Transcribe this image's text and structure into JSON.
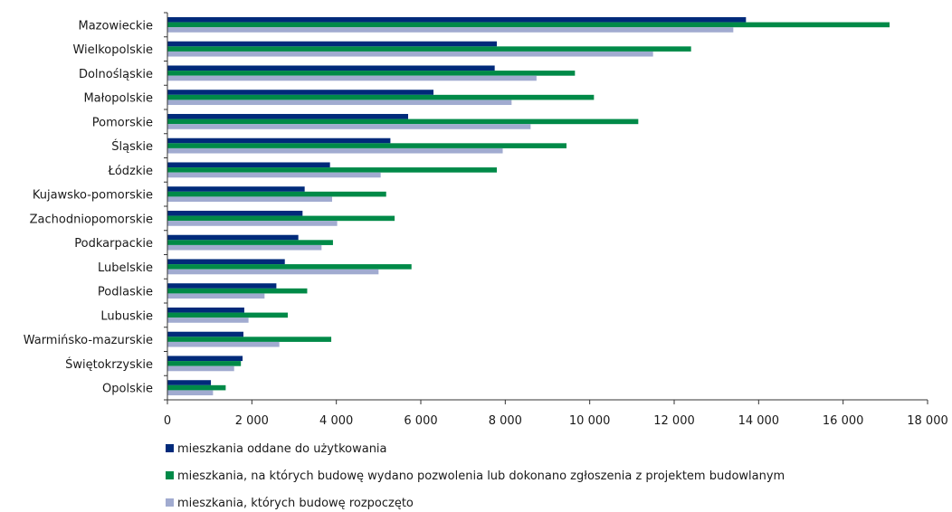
{
  "chart_data": {
    "type": "bar",
    "orientation": "horizontal",
    "categories": [
      "Mazowieckie",
      "Wielkopolskie",
      "Dolnośląskie",
      "Małopolskie",
      "Pomorskie",
      "Śląskie",
      "Łódzkie",
      "Kujawsko-pomorskie",
      "Zachodniopomorskie",
      "Podkarpackie",
      "Lubelskie",
      "Podlaskie",
      "Lubuskie",
      "Warmińsko-mazurskie",
      "Świętokrzyskie",
      "Opolskie"
    ],
    "series": [
      {
        "name": "mieszkania oddane do użytkowania",
        "color": "#002a7a",
        "values": [
          13700,
          7800,
          7750,
          6300,
          5700,
          5280,
          3850,
          3250,
          3200,
          3100,
          2780,
          2580,
          1820,
          1800,
          1780,
          1030
        ]
      },
      {
        "name": "mieszkania, na których budowę wydano pozwolenia lub dokonano zgłoszenia z projektem budowlanym",
        "color": "#008a48",
        "values": [
          17100,
          12400,
          9650,
          10100,
          11150,
          9450,
          7800,
          5180,
          5380,
          3920,
          5780,
          3310,
          2850,
          3880,
          1740,
          1380
        ]
      },
      {
        "name": "mieszkania, których budowę rozpoczęto",
        "color": "#a1abd0",
        "values": [
          13400,
          11500,
          8740,
          8150,
          8600,
          7940,
          5050,
          3900,
          4020,
          3650,
          5000,
          2300,
          1920,
          2650,
          1580,
          1080
        ]
      }
    ],
    "x_ticks": [
      "0",
      "2 000",
      "4 000",
      "6 000",
      "8 000",
      "10 000",
      "12 000",
      "14 000",
      "16 000",
      "18 000"
    ],
    "xlim": [
      0,
      18000
    ],
    "tick_step": 2000,
    "grid": false,
    "legend_position": "bottom-left",
    "title": "",
    "xlabel": "",
    "ylabel": ""
  }
}
